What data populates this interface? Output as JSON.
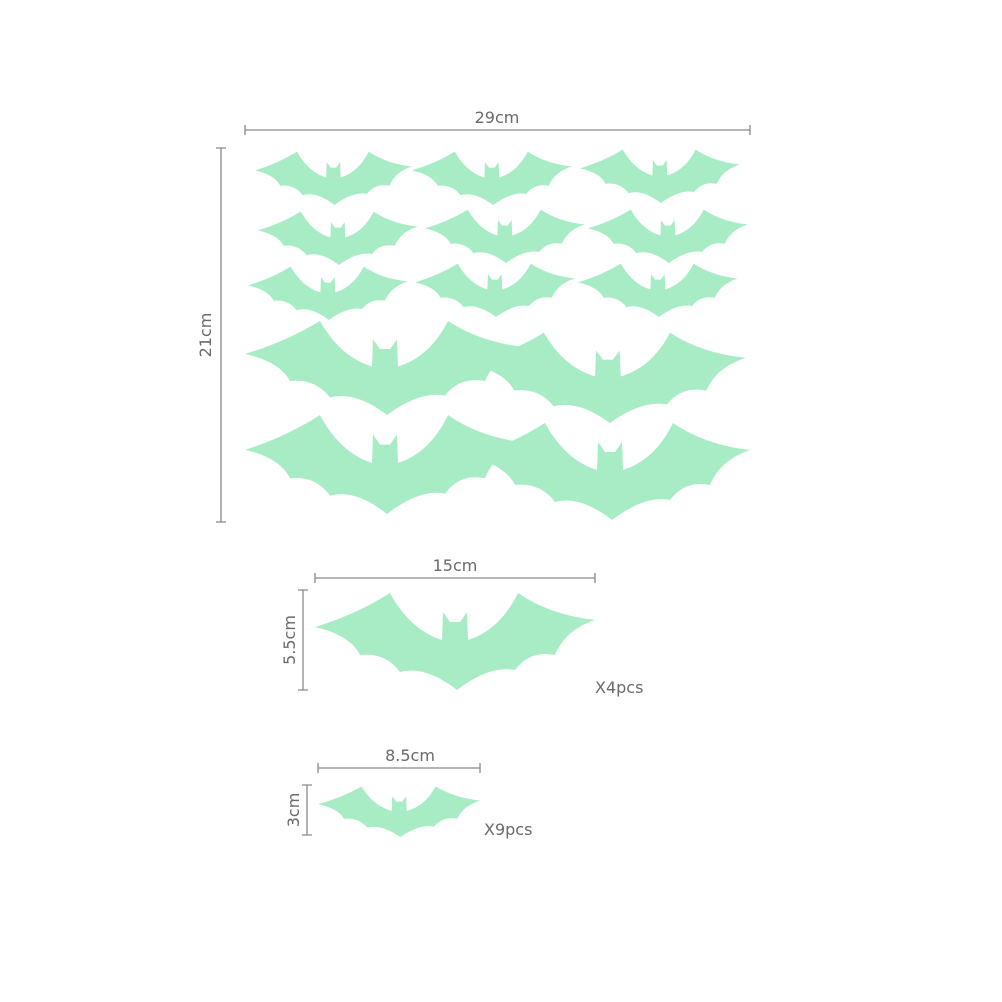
{
  "colors": {
    "bat": "#a8ecc6",
    "dimension_line": "#8a8a8a",
    "text": "#6a6a6a"
  },
  "sheet": {
    "width_label": "29cm",
    "height_label": "21cm"
  },
  "large_bat": {
    "width_label": "15cm",
    "height_label": "5.5cm",
    "quantity_label": "X4pcs"
  },
  "small_bat": {
    "width_label": "8.5cm",
    "height_label": "3cm",
    "quantity_label": "X9pcs"
  }
}
